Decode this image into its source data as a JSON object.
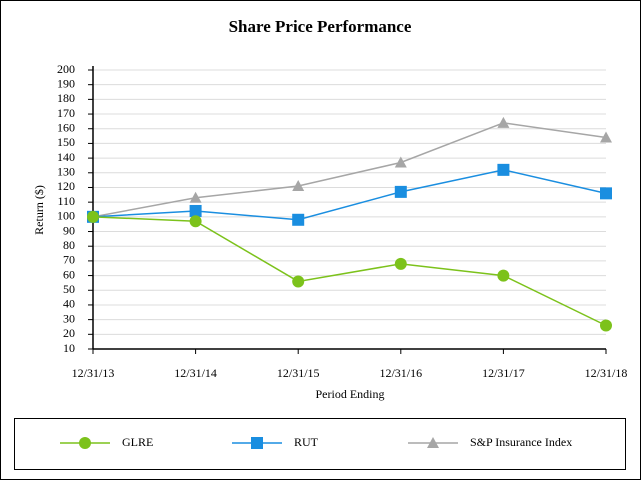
{
  "chart_data": {
    "type": "line",
    "title": "Share Price Performance",
    "x_label": "Period Ending",
    "y_label": "Return ($)",
    "categories": [
      "12/31/13",
      "12/31/14",
      "12/31/15",
      "12/31/16",
      "12/31/17",
      "12/31/18"
    ],
    "series": [
      {
        "name": "GLRE",
        "color": "#7cc21b",
        "marker": "circle",
        "values": [
          100,
          97,
          56,
          68,
          60,
          26
        ]
      },
      {
        "name": "RUT",
        "color": "#1a8ee0",
        "marker": "square",
        "values": [
          100,
          104,
          98,
          117,
          132,
          116
        ]
      },
      {
        "name": "S&P Insurance Index",
        "color": "#a6a6a6",
        "marker": "triangle",
        "values": [
          100,
          113,
          121,
          137,
          164,
          154
        ]
      }
    ],
    "ylim": [
      10,
      200
    ],
    "yticks": [
      10,
      20,
      30,
      40,
      50,
      60,
      70,
      80,
      90,
      100,
      110,
      120,
      130,
      140,
      150,
      160,
      170,
      180,
      190,
      200
    ],
    "grid": true,
    "legend": "bottom"
  }
}
